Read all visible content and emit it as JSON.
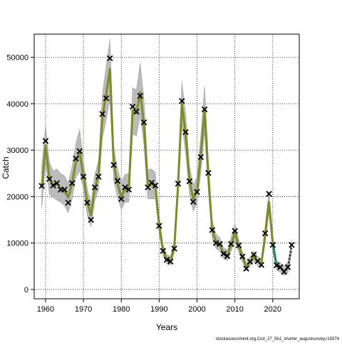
{
  "chart_data": {
    "type": "line",
    "title": "",
    "xlabel": "Years",
    "ylabel": "Catch",
    "xlim": [
      1957,
      2027
    ],
    "ylim": [
      -2000,
      55000
    ],
    "x_ticks": [
      1960,
      1970,
      1980,
      1990,
      2000,
      2010,
      2020
    ],
    "y_ticks": [
      0,
      10000,
      20000,
      30000,
      40000,
      50000
    ],
    "x_tick_labels": [
      "1960",
      "1970",
      "1980",
      "1990",
      "2000",
      "2010",
      "2020"
    ],
    "y_tick_labels": [
      "0",
      "10000",
      "20000",
      "30000",
      "40000",
      "50000"
    ],
    "grid": true,
    "footnote": "stockassessment.org,Cod_27_5b1_shorter_augustsurvey,r19374",
    "colors": {
      "band": "#bbbbbb",
      "fit_line": "#7f8b2a",
      "recent_line": "#1f8a5a",
      "forecast_line": "#333333",
      "observed_marker": "#000000",
      "grid": "#000000"
    },
    "series": [
      {
        "name": "",
        "role": "observed",
        "x": [
          1959,
          1960,
          1961,
          1962,
          1963,
          1964,
          1965,
          1966,
          1967,
          1968,
          1969,
          1970,
          1971,
          1972,
          1973,
          1974,
          1975,
          1976,
          1977,
          1978,
          1979,
          1980,
          1981,
          1982,
          1983,
          1984,
          1985,
          1986,
          1987,
          1988,
          1989,
          1990,
          1991,
          1992,
          1993,
          1994,
          1995,
          1996,
          1997,
          1998,
          1999,
          2000,
          2001,
          2002,
          2003,
          2004,
          2005,
          2006,
          2007,
          2008,
          2009,
          2010,
          2011,
          2012,
          2013,
          2014,
          2015,
          2016,
          2017,
          2018,
          2019,
          2020,
          2021,
          2022,
          2023,
          2024,
          2025
        ],
        "values": [
          22300,
          32000,
          23800,
          22400,
          22900,
          21500,
          21500,
          18700,
          22900,
          28200,
          29800,
          24300,
          18700,
          15000,
          22000,
          24300,
          37800,
          41200,
          49800,
          26800,
          23400,
          19500,
          22000,
          21500,
          39400,
          38300,
          41700,
          36000,
          22000,
          23000,
          22400,
          13700,
          8300,
          6400,
          6000,
          8800,
          22800,
          40600,
          33900,
          23300,
          18900,
          21000,
          28500,
          38800,
          25100,
          12800,
          10000,
          9800,
          7700,
          7200,
          9800,
          12600,
          9500,
          7100,
          4500,
          6000,
          7500,
          6100,
          5300,
          12100,
          20600,
          9600,
          5200,
          4800,
          3800,
          4800,
          9600
        ]
      },
      {
        "name": "",
        "role": "estimated",
        "x": [
          1959,
          1960,
          1961,
          1962,
          1963,
          1964,
          1965,
          1966,
          1967,
          1968,
          1969,
          1970,
          1971,
          1972,
          1973,
          1974,
          1975,
          1976,
          1977,
          1978,
          1979,
          1980,
          1981,
          1982,
          1983,
          1984,
          1985,
          1986,
          1987,
          1988,
          1989,
          1990,
          1991,
          1992,
          1993,
          1994,
          1995,
          1996,
          1997,
          1998,
          1999,
          2000,
          2001,
          2002,
          2003,
          2004,
          2005,
          2006,
          2007,
          2008,
          2009,
          2010,
          2011,
          2012,
          2013,
          2014,
          2015,
          2016,
          2017,
          2018,
          2019,
          2020,
          2021,
          2022,
          2023,
          2024,
          2025
        ],
        "values": [
          22000,
          31000,
          24000,
          22500,
          22800,
          21800,
          21200,
          19800,
          22800,
          27500,
          29500,
          24500,
          18800,
          16000,
          21800,
          24500,
          37000,
          42000,
          47500,
          27000,
          22800,
          20000,
          21600,
          21800,
          38500,
          38000,
          42500,
          35500,
          22500,
          22600,
          22200,
          14000,
          8500,
          6500,
          6200,
          9000,
          22500,
          40000,
          33500,
          23500,
          19500,
          21200,
          29000,
          38500,
          24500,
          12800,
          10300,
          9700,
          7800,
          7300,
          9600,
          12200,
          9400,
          7000,
          4900,
          5900,
          7100,
          6100,
          5600,
          11800,
          18800,
          10000,
          5200,
          4700,
          4000,
          4700,
          9300
        ],
        "lower": [
          17500,
          27500,
          20500,
          19800,
          19200,
          18800,
          18000,
          16500,
          19500,
          24000,
          25500,
          21500,
          16000,
          13500,
          19000,
          21500,
          32500,
          36500,
          41000,
          23500,
          19800,
          17200,
          18800,
          18800,
          33500,
          33000,
          37500,
          31000,
          19500,
          19500,
          19500,
          12200,
          7300,
          5500,
          5300,
          7800,
          19500,
          35500,
          29500,
          20500,
          16800,
          18500,
          25000,
          34000,
          21000,
          11000,
          8800,
          8300,
          6600,
          6200,
          8200,
          10500,
          8000,
          6000,
          4000,
          5000,
          6100,
          5200,
          4700,
          10000,
          16500,
          8200,
          4200,
          3700,
          3000,
          3500,
          7800
        ],
        "upper": [
          26500,
          35500,
          27500,
          25500,
          26000,
          25000,
          24500,
          23000,
          26500,
          31500,
          34500,
          27800,
          21800,
          18500,
          24800,
          27800,
          42000,
          48000,
          54000,
          30800,
          26000,
          23200,
          24800,
          25000,
          43500,
          43000,
          48800,
          41000,
          25800,
          26000,
          25200,
          15800,
          9800,
          7500,
          7200,
          10300,
          25800,
          44800,
          37800,
          26800,
          22500,
          24300,
          33200,
          43800,
          28200,
          14800,
          12000,
          11200,
          9000,
          8500,
          11200,
          14200,
          10900,
          8200,
          5800,
          7000,
          8300,
          7100,
          6600,
          13800,
          21200,
          11800,
          6200,
          5800,
          5000,
          5900,
          10800
        ]
      }
    ]
  }
}
